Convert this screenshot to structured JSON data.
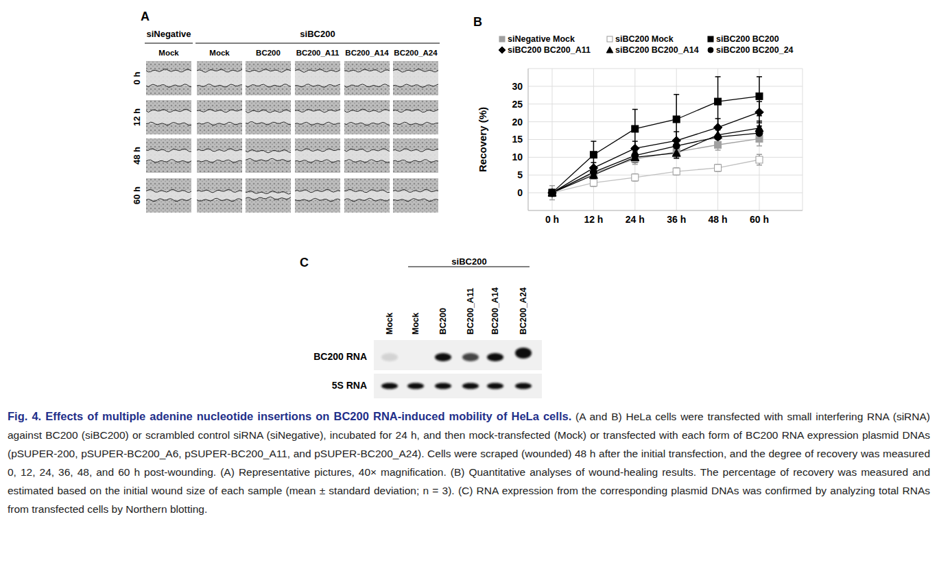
{
  "panel_a": {
    "label": "A",
    "groups": [
      {
        "label": "siNegative",
        "columns": [
          "Mock"
        ]
      },
      {
        "label": "siBC200",
        "columns": [
          "Mock",
          "BC200",
          "BC200_A11",
          "BC200_A14",
          "BC200_A24"
        ]
      }
    ],
    "rows": [
      "0 h",
      "12 h",
      "48 h",
      "60 h"
    ]
  },
  "panel_b_label": "B",
  "chart_data": {
    "type": "line",
    "y_label": "Recovery (%)",
    "categories": [
      "0 h",
      "12 h",
      "24 h",
      "36 h",
      "48 h",
      "60 h"
    ],
    "ylim": [
      -5,
      35
    ],
    "yticks": [
      0,
      5,
      10,
      15,
      20,
      25,
      30
    ],
    "grid": true,
    "legend": "top",
    "series": [
      {
        "name": "siNegative Mock",
        "color": "#a0a0a0",
        "marker": "square",
        "values": [
          0,
          5.5,
          9.5,
          11.5,
          13.5,
          15.2
        ],
        "errors": [
          2,
          1,
          1.5,
          1.5,
          1.5,
          2
        ]
      },
      {
        "name": "siBC200 Mock",
        "color": "#c0c0c0",
        "marker": "open_square",
        "values": [
          0,
          2.8,
          4.3,
          6,
          7,
          9.3
        ],
        "errors": [
          1,
          1,
          1,
          1,
          1,
          1.5
        ]
      },
      {
        "name": "siBC200 BC200",
        "color": "#000000",
        "marker": "square",
        "values": [
          0,
          10.7,
          18,
          20.7,
          25.7,
          27.2
        ],
        "errors": [
          1,
          3.8,
          5.5,
          7,
          7,
          5.5
        ]
      },
      {
        "name": "siBC200 BC200_A11",
        "color": "#000000",
        "marker": "diamond",
        "values": [
          0,
          7,
          12.5,
          14.7,
          18.4,
          22.7
        ],
        "errors": [
          1,
          1.5,
          2,
          2.5,
          2.5,
          3
        ]
      },
      {
        "name": "siBC200 BC200_A14",
        "color": "#000000",
        "marker": "triangle",
        "values": [
          0,
          5,
          10,
          11.2,
          16.3,
          18.2
        ],
        "errors": [
          1,
          1,
          1.5,
          1.5,
          2,
          2
        ]
      },
      {
        "name": "siBC200 BC200_24",
        "color": "#000000",
        "marker": "circle",
        "values": [
          0,
          5.8,
          10.5,
          13.2,
          15.7,
          16.8
        ],
        "errors": [
          1,
          1,
          1.5,
          1.5,
          2,
          2
        ]
      }
    ]
  },
  "panel_c": {
    "label": "C",
    "group": "siBC200",
    "lanes": [
      "Mock",
      "Mock",
      "BC200",
      "BC200_A11",
      "BC200_A14",
      "BC200_A24"
    ],
    "rows": [
      "BC200 RNA",
      "5S RNA"
    ]
  },
  "caption": {
    "title": "Fig. 4. Effects of multiple adenine nucleotide insertions on BC200 RNA-induced mobility of HeLa cells.",
    "text": "(A and B) HeLa cells were transfected with small interfering RNA (siRNA) against BC200 (siBC200) or scrambled control siRNA (siNegative), incubated for 24 h, and then mock-transfected (Mock) or transfected with each form of BC200 RNA expression plasmid DNAs (pSUPER-200, pSUPER-BC200_A6, pSUPER-BC200_A11, and pSUPER-BC200_A24). Cells were scraped (wounded) 48 h after the initial transfection, and the degree of recovery was measured 0, 12, 24, 36, 48, and 60 h post-wounding. (A) Representative pictures, 40× magnification. (B) Quantitative analyses of wound-healing results. The percentage of recovery was measured and estimated based on the initial wound size of each sample (mean ± standard deviation; n = 3). (C) RNA expression from the corresponding plasmid DNAs was confirmed by analyzing total RNAs from transfected cells by Northern blotting."
  }
}
